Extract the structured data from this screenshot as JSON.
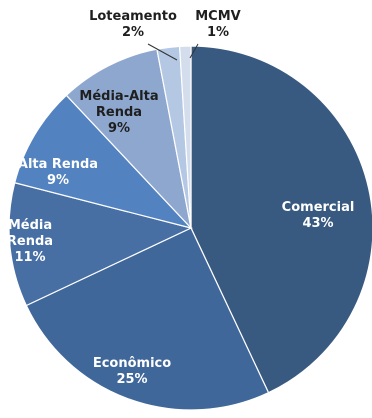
{
  "chart_data": {
    "type": "pie",
    "title": "",
    "slices": [
      {
        "label_lines": [
          "Comercial"
        ],
        "pct_label": "43%",
        "value": 43,
        "color": "#395a80",
        "label_color": "#ffffff"
      },
      {
        "label_lines": [
          "Econômico"
        ],
        "pct_label": "25%",
        "value": 25,
        "color": "#40679a",
        "label_color": "#ffffff"
      },
      {
        "label_lines": [
          "Média",
          "Renda"
        ],
        "pct_label": "11%",
        "value": 11,
        "color": "#486fa4",
        "label_color": "#ffffff"
      },
      {
        "label_lines": [
          "Alta Renda"
        ],
        "pct_label": "9%",
        "value": 9,
        "color": "#5382c0",
        "label_color": "#ffffff"
      },
      {
        "label_lines": [
          "Média-Alta",
          "Renda"
        ],
        "pct_label": "9%",
        "value": 9,
        "color": "#8da7cf",
        "label_color": "#1f1f1f"
      },
      {
        "label_lines": [
          "Loteamento"
        ],
        "pct_label": "2%",
        "value": 2,
        "color": "#b4c7e3",
        "label_color": "#1f1f1f"
      },
      {
        "label_lines": [
          "MCMV"
        ],
        "pct_label": "1%",
        "value": 1,
        "color": "#d3ddec",
        "label_color": "#1f1f1f"
      }
    ]
  }
}
